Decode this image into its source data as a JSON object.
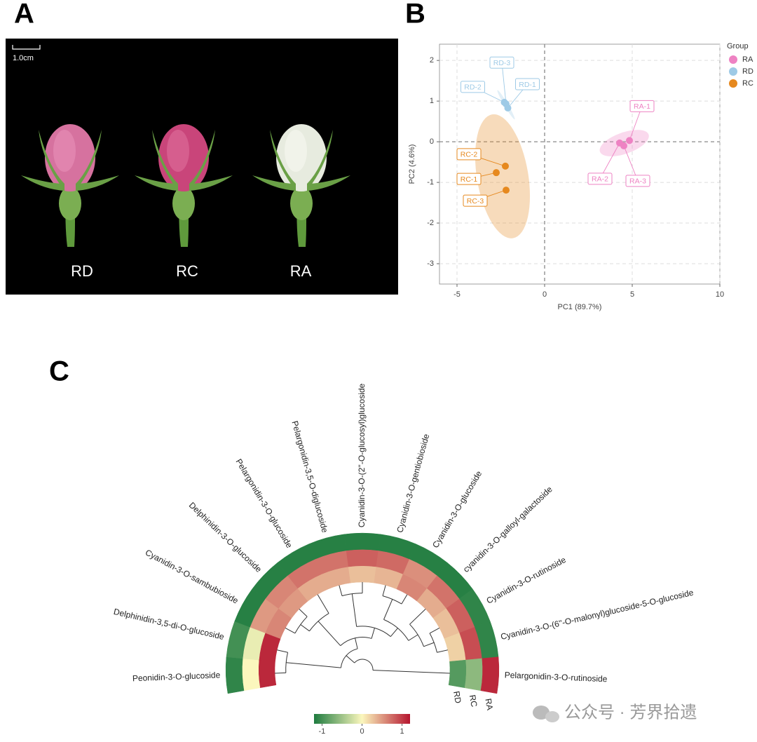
{
  "panel_labels": [
    "A",
    "B",
    "C"
  ],
  "photo": {
    "scale_label": "1.0cm",
    "labels": [
      "RD",
      "RC",
      "RA"
    ]
  },
  "watermark": "公众号 · 芳界拾遗",
  "chart_data": [
    {
      "type": "scatter",
      "xlabel": "PC1 (89.7%)",
      "ylabel": "PC2 (4.6%)",
      "xlim": [
        -6,
        10
      ],
      "ylim": [
        -3.5,
        2.4
      ],
      "xticks": [
        -5,
        0,
        5,
        10
      ],
      "yticks": [
        -3,
        -2,
        -1,
        0,
        1,
        2
      ],
      "grid": true,
      "legend_title": "Group",
      "legend": "right",
      "series": [
        {
          "name": "RA",
          "color": "#ee82c3",
          "x": [
            4.84,
            4.28,
            4.52
          ],
          "values": [
            0.03,
            -0.03,
            -0.1
          ],
          "labels": [
            "RA-1",
            "RA-2",
            "RA-3"
          ]
        },
        {
          "name": "RD",
          "color": "#9ecae6",
          "x": [
            -2.1,
            -2.3,
            -2.2
          ],
          "values": [
            0.83,
            0.97,
            0.93
          ],
          "labels": [
            "RD-1",
            "RD-2",
            "RD-3"
          ]
        },
        {
          "name": "RC",
          "color": "#e6891f",
          "x": [
            -2.76,
            -2.24,
            -2.2
          ],
          "values": [
            -0.76,
            -0.6,
            -1.19
          ],
          "labels": [
            "RC-1",
            "RC-2",
            "RC-3"
          ]
        }
      ]
    },
    {
      "type": "heatmap",
      "categories": [
        "Peonidin-3-O-glucoside",
        "Delphinidin-3,5-di-O-glucoside",
        "Cyanidin-3-O-sambubioside",
        "Delphinidin-3-O-glucoside",
        "Pelargonidin-3-O-glucoside",
        "Pelargonidin-3,5-O-diglucoside",
        "Cyanidin-3-O-(2''-O-glucosyl)glucoside",
        "Cyanidin-3-O-gentiobioside",
        "Cyanidin-3-O-glucoside",
        "cyanidin-3-O-galloyl-galactoside",
        "Cyanidin-3-O-rutinoside",
        "Cyanidin-3-O-(6''-O-malonyl)glucoside-5-O-glucoside",
        "Pelargonidin-3-O-rutinoside"
      ],
      "columns": [
        "RD",
        "RC",
        "RA"
      ],
      "values": [
        [
          1.1,
          0.0,
          -1.1
        ],
        [
          1.1,
          -0.1,
          -1.0
        ],
        [
          0.6,
          0.5,
          -1.15
        ],
        [
          0.5,
          0.6,
          -1.15
        ],
        [
          0.4,
          0.7,
          -1.15
        ],
        [
          0.4,
          0.7,
          -1.15
        ],
        [
          0.3,
          0.8,
          -1.15
        ],
        [
          0.35,
          0.75,
          -1.15
        ],
        [
          0.6,
          0.55,
          -1.15
        ],
        [
          0.4,
          0.7,
          -1.15
        ],
        [
          0.3,
          0.8,
          -1.1
        ],
        [
          0.2,
          0.9,
          -1.1
        ],
        [
          -0.9,
          -0.6,
          1.1
        ]
      ],
      "zlim": [
        -1.2,
        1.2
      ],
      "zticks": [
        -1,
        0,
        1
      ],
      "colorscale": [
        "#1e7b3f",
        "#fbf7bd",
        "#b5152f"
      ]
    }
  ]
}
